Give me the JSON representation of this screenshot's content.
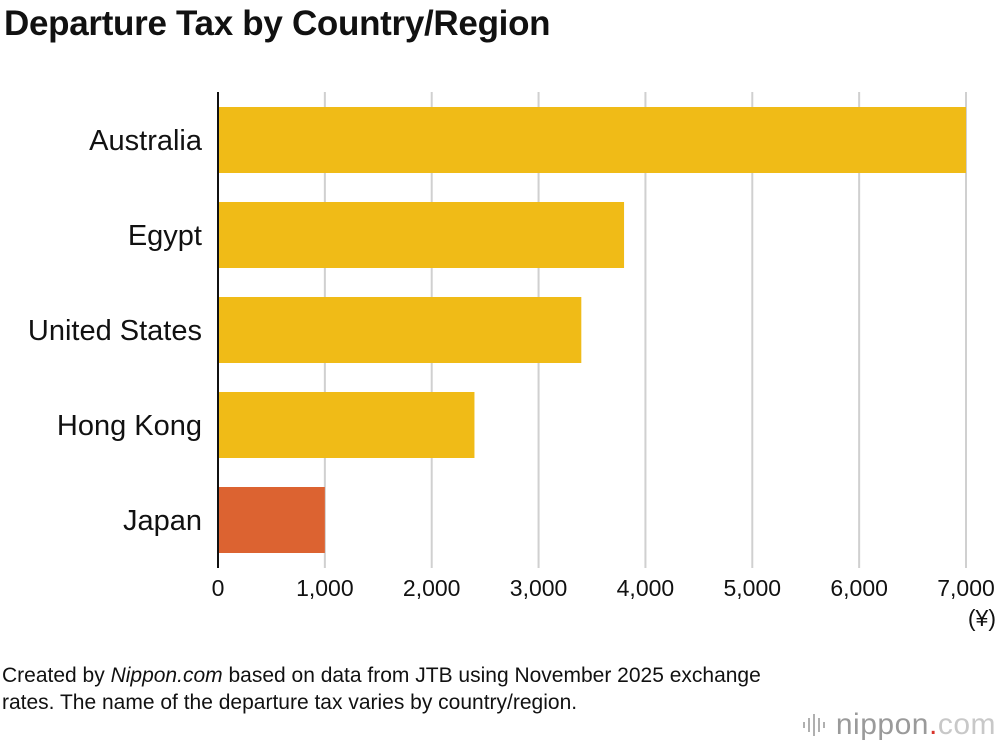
{
  "chart_data": {
    "type": "bar",
    "orientation": "horizontal",
    "title": "Departure Tax by Country/Region",
    "categories": [
      "Australia",
      "Egypt",
      "United States",
      "Hong Kong",
      "Japan"
    ],
    "values": [
      7000,
      3800,
      3400,
      2400,
      1000
    ],
    "colors": [
      "#f0bb17",
      "#f0bb17",
      "#f0bb17",
      "#f0bb17",
      "#dc6331"
    ],
    "xlim": [
      0,
      7000
    ],
    "xticks": [
      0,
      1000,
      2000,
      3000,
      4000,
      5000,
      6000,
      7000
    ],
    "xtick_labels": [
      "0",
      "1,000",
      "2,000",
      "3,000",
      "4,000",
      "5,000",
      "6,000",
      "7,000"
    ],
    "xunit": "(¥)",
    "grid": true
  },
  "footnote": {
    "prefix": "Created by ",
    "brand": "Nippon.com",
    "suffix": " based on data from JTB using November 2025 exchange rates. The name of the departure tax varies by country/region."
  },
  "logo": {
    "name": "nippon",
    "dot": ".",
    "tld": "com"
  }
}
